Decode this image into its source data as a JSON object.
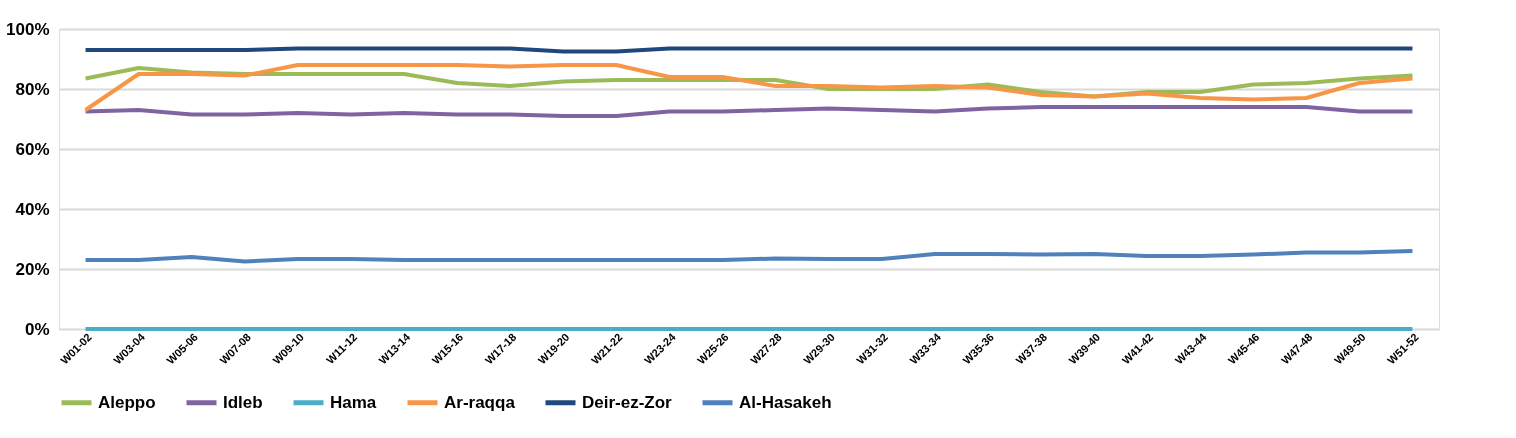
{
  "chart_data": {
    "type": "line",
    "categories": [
      "W01-02",
      "W03-04",
      "W05-06",
      "W07-08",
      "W09-10",
      "W11-12",
      "W13-14",
      "W15-16",
      "W17-18",
      "W19-20",
      "W21-22",
      "W23-24",
      "W25-26",
      "W27-28",
      "W29-30",
      "W31-32",
      "W33-34",
      "W35-36",
      "W37-38",
      "W39-40",
      "W41-42",
      "W43-44",
      "W45-46",
      "W47-48",
      "W49-50",
      "W51-52"
    ],
    "series": [
      {
        "name": "Aleppo",
        "color": "#9bbb59",
        "values": [
          83.5,
          87,
          85.5,
          85,
          85,
          85,
          85,
          82,
          81,
          82.5,
          83,
          83,
          83,
          83,
          80,
          80,
          80,
          81.5,
          79,
          77.5,
          79,
          79,
          81.5,
          82,
          83.5,
          84.5
        ]
      },
      {
        "name": "Idleb",
        "color": "#8064a2",
        "values": [
          72.5,
          73,
          71.5,
          71.5,
          72,
          71.5,
          72,
          71.5,
          71.5,
          71,
          71,
          72.5,
          72.5,
          73,
          73.5,
          73,
          72.5,
          73.5,
          74,
          74,
          74,
          74,
          74,
          74,
          72.5,
          72.5
        ]
      },
      {
        "name": "Hama",
        "color": "#4bacc6",
        "values": [
          0,
          0,
          0,
          0,
          0,
          0,
          0,
          0,
          0,
          0,
          0,
          0,
          0,
          0,
          0,
          0,
          0,
          0,
          0,
          0,
          0,
          0,
          0,
          0,
          0,
          0
        ]
      },
      {
        "name": "Ar-raqqa",
        "color": "#f79646",
        "values": [
          73,
          85,
          85,
          84.5,
          88,
          88,
          88,
          88,
          87.5,
          88,
          88,
          84,
          84,
          81,
          81,
          80.5,
          81,
          80.5,
          78,
          77.5,
          78.5,
          77,
          76.5,
          77,
          82,
          83.5
        ]
      },
      {
        "name": "Deir-ez-Zor",
        "color": "#1f497d",
        "values": [
          93,
          93,
          93,
          93,
          93.5,
          93.5,
          93.5,
          93.5,
          93.5,
          92.5,
          92.5,
          93.5,
          93.5,
          93.5,
          93.5,
          93.5,
          93.5,
          93.5,
          93.5,
          93.5,
          93.5,
          93.5,
          93.5,
          93.5,
          93.5,
          93.5
        ]
      },
      {
        "name": "Al-Hasakeh",
        "color": "#4f81bd",
        "values": [
          23,
          23,
          24,
          22.5,
          23.3,
          23.3,
          23,
          23,
          23,
          23,
          23,
          23,
          23,
          23.5,
          23.3,
          23.3,
          25,
          25,
          24.8,
          25,
          24.3,
          24.3,
          24.8,
          25.5,
          25.5,
          26
        ]
      }
    ],
    "ylim": [
      0,
      100
    ],
    "yticks": [
      {
        "value": 0,
        "label": "0%"
      },
      {
        "value": 20,
        "label": "20%"
      },
      {
        "value": 40,
        "label": "40%"
      },
      {
        "value": 60,
        "label": "60%"
      },
      {
        "value": 80,
        "label": "80%"
      },
      {
        "value": 100,
        "label": "100%"
      }
    ],
    "grid": "y",
    "legend": "bottom",
    "marker": "none",
    "line_style": "solid"
  }
}
